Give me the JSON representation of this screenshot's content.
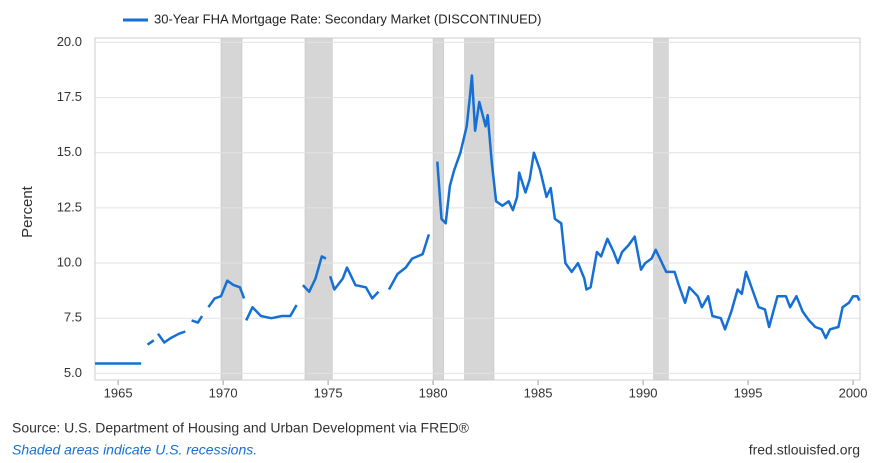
{
  "chart_data": {
    "type": "line",
    "legend": "30-Year FHA Mortgage Rate: Secondary Market (DISCONTINUED)",
    "y_label": "Percent",
    "source": "Source: U.S. Department of Housing and Urban Development via FRED®",
    "note": "Shaded areas indicate U.S. recessions.",
    "site": "fred.stlouisfed.org",
    "recessions": [
      [
        1969.9,
        1970.9
      ],
      [
        1973.9,
        1975.2
      ],
      [
        1980.0,
        1980.5
      ],
      [
        1981.5,
        1982.9
      ],
      [
        1990.5,
        1991.2
      ]
    ],
    "recession_color": "#d6d6d6",
    "xlim": [
      1963.9,
      2000.33
    ],
    "ylim": [
      4.7,
      20.2
    ],
    "xticks": [
      1965,
      1970,
      1975,
      1980,
      1985,
      1990,
      1995,
      2000
    ],
    "yticks": [
      {
        "value": 5,
        "label": "5.0"
      },
      {
        "value": 7.5,
        "label": "7.5"
      },
      {
        "value": 10,
        "label": "10.0"
      },
      {
        "value": 12.5,
        "label": "12.5"
      },
      {
        "value": 15,
        "label": "15.0"
      },
      {
        "value": 17.5,
        "label": "17.5"
      },
      {
        "value": 20,
        "label": "20.0"
      }
    ],
    "grid": true,
    "color": "#1670d4",
    "x": [
      1963.9,
      1965,
      1966.1,
      1966.2,
      1966.4,
      1966.7,
      1966.8,
      1966.9,
      1967.2,
      1967.5,
      1967.9,
      1968.2,
      1968.3,
      1968.5,
      1968.8,
      1969.0,
      1969.1,
      1969.3,
      1969.6,
      1969.9,
      1970.2,
      1970.5,
      1970.8,
      1971.0,
      1971.05,
      1971.1,
      1971.4,
      1971.8,
      1972.3,
      1972.8,
      1973.2,
      1973.5,
      1973.6,
      1973.8,
      1974.1,
      1974.4,
      1974.7,
      1974.9,
      1975.0,
      1975.1,
      1975.3,
      1975.7,
      1975.9,
      1976.3,
      1976.8,
      1977.1,
      1977.4,
      1977.6,
      1977.9,
      1978.3,
      1978.7,
      1979.0,
      1979.5,
      1979.8,
      1979.9,
      1980.0,
      1980.1,
      1980.2,
      1980.4,
      1980.6,
      1980.8,
      1981.0,
      1981.3,
      1981.6,
      1981.75,
      1981.85,
      1982.0,
      1982.2,
      1982.5,
      1982.6,
      1982.8,
      1983.0,
      1983.3,
      1983.6,
      1983.8,
      1984.0,
      1984.1,
      1984.4,
      1984.6,
      1984.8,
      1985.1,
      1985.4,
      1985.6,
      1985.8,
      1986.1,
      1986.3,
      1986.6,
      1986.9,
      1987.2,
      1987.3,
      1987.5,
      1987.8,
      1988.0,
      1988.3,
      1988.6,
      1988.8,
      1989.0,
      1989.3,
      1989.6,
      1989.9,
      1990.1,
      1990.4,
      1990.6,
      1990.8,
      1991.1,
      1991.5,
      1991.7,
      1992.0,
      1992.2,
      1992.6,
      1992.8,
      1993.1,
      1993.3,
      1993.7,
      1993.9,
      1994.2,
      1994.5,
      1994.7,
      1994.9,
      1995.2,
      1995.5,
      1995.8,
      1996.0,
      1996.4,
      1996.8,
      1997.0,
      1997.3,
      1997.6,
      1997.9,
      1998.2,
      1998.5,
      1998.7,
      1998.9,
      1999.3,
      1999.5,
      1999.8,
      2000.0,
      2000.2,
      2000.3
    ],
    "values": [
      5.45,
      5.45,
      5.45,
      null,
      6.3,
      6.5,
      null,
      6.8,
      6.4,
      6.6,
      6.8,
      6.9,
      null,
      7.4,
      7.3,
      7.6,
      null,
      8.0,
      8.4,
      8.5,
      9.2,
      9.0,
      8.9,
      8.4,
      null,
      7.4,
      8.0,
      7.6,
      7.5,
      7.6,
      7.6,
      8.1,
      null,
      9.0,
      8.7,
      9.3,
      10.3,
      10.2,
      null,
      9.4,
      8.8,
      9.3,
      9.8,
      9.0,
      8.9,
      8.4,
      8.7,
      null,
      8.8,
      9.5,
      9.8,
      10.2,
      10.4,
      11.3,
      null,
      12.5,
      null,
      14.6,
      12.0,
      11.8,
      13.5,
      14.2,
      15.0,
      16.2,
      17.5,
      18.5,
      16.0,
      17.3,
      16.2,
      16.7,
      14.5,
      12.8,
      12.6,
      12.8,
      12.4,
      13.0,
      14.1,
      13.2,
      13.8,
      15.0,
      14.2,
      13.0,
      13.4,
      12.0,
      11.8,
      10.0,
      9.6,
      10.0,
      9.3,
      8.8,
      8.9,
      10.5,
      10.3,
      11.1,
      10.5,
      10.0,
      10.5,
      10.8,
      11.2,
      9.7,
      10.0,
      10.2,
      10.6,
      10.2,
      9.6,
      9.6,
      9.0,
      8.2,
      8.9,
      8.5,
      8.0,
      8.5,
      7.6,
      7.5,
      7.0,
      7.8,
      8.8,
      8.6,
      9.6,
      8.8,
      8.0,
      7.9,
      7.1,
      8.5,
      8.5,
      8.0,
      8.5,
      7.8,
      7.4,
      7.1,
      7.0,
      6.6,
      7.0,
      7.1,
      8.0,
      8.2,
      8.5,
      8.5,
      8.3
    ]
  }
}
